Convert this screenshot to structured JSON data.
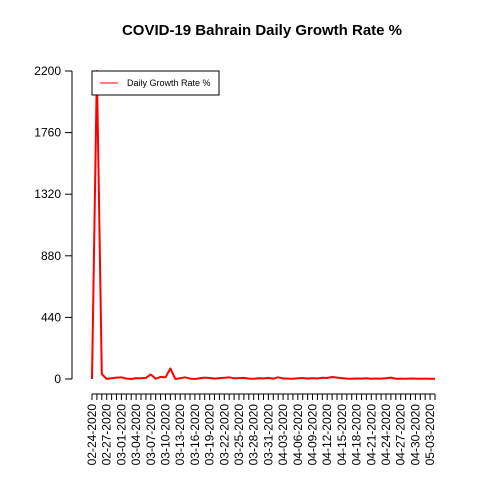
{
  "chart_data": {
    "type": "line",
    "title": "COVID-19 Bahrain Daily Growth Rate %",
    "xlabel": "",
    "ylabel": "",
    "ylim": [
      0,
      2200
    ],
    "yticks": [
      0,
      440,
      880,
      1320,
      1760,
      2200
    ],
    "grid": false,
    "legend_position": "top-left",
    "x": [
      "02-24-2020",
      "02-25-2020",
      "02-26-2020",
      "02-27-2020",
      "02-28-2020",
      "02-29-2020",
      "03-01-2020",
      "03-02-2020",
      "03-03-2020",
      "03-04-2020",
      "03-05-2020",
      "03-06-2020",
      "03-07-2020",
      "03-08-2020",
      "03-09-2020",
      "03-10-2020",
      "03-11-2020",
      "03-12-2020",
      "03-13-2020",
      "03-14-2020",
      "03-15-2020",
      "03-16-2020",
      "03-17-2020",
      "03-18-2020",
      "03-19-2020",
      "03-20-2020",
      "03-21-2020",
      "03-22-2020",
      "03-23-2020",
      "03-24-2020",
      "03-25-2020",
      "03-26-2020",
      "03-27-2020",
      "03-28-2020",
      "03-29-2020",
      "03-30-2020",
      "03-31-2020",
      "04-01-2020",
      "04-02-2020",
      "04-03-2020",
      "04-04-2020",
      "04-05-2020",
      "04-06-2020",
      "04-07-2020",
      "04-08-2020",
      "04-09-2020",
      "04-10-2020",
      "04-11-2020",
      "04-12-2020",
      "04-13-2020",
      "04-14-2020",
      "04-15-2020",
      "04-16-2020",
      "04-17-2020",
      "04-18-2020",
      "04-19-2020",
      "04-20-2020",
      "04-21-2020",
      "04-22-2020",
      "04-23-2020",
      "04-24-2020",
      "04-25-2020",
      "04-26-2020",
      "04-27-2020",
      "04-28-2020",
      "04-29-2020",
      "04-30-2020",
      "05-01-2020",
      "05-02-2020",
      "05-03-2020",
      "05-04-2020"
    ],
    "xtick_labels": [
      "02-24-2020",
      "02-27-2020",
      "03-01-2020",
      "03-04-2020",
      "03-07-2020",
      "03-10-2020",
      "03-13-2020",
      "03-16-2020",
      "03-19-2020",
      "03-22-2020",
      "03-25-2020",
      "03-28-2020",
      "03-31-2020",
      "04-03-2020",
      "04-06-2020",
      "04-09-2020",
      "04-12-2020",
      "04-15-2020",
      "04-18-2020",
      "04-21-2020",
      "04-24-2020",
      "04-27-2020",
      "04-30-2020",
      "05-03-2020"
    ],
    "series": [
      {
        "name": "Daily Growth Rate %",
        "color": "#ff0000",
        "values": [
          0,
          2200,
          35,
          0,
          5,
          10,
          12,
          3,
          0,
          6,
          5,
          8,
          32,
          2,
          15,
          12,
          75,
          0,
          5,
          12,
          3,
          0,
          5,
          10,
          7,
          3,
          6,
          9,
          12,
          5,
          6,
          8,
          3,
          2,
          5,
          4,
          8,
          2,
          12,
          4,
          3,
          2,
          5,
          7,
          3,
          6,
          4,
          9,
          7,
          14,
          10,
          6,
          3,
          2,
          4,
          3,
          5,
          2,
          4,
          3,
          5,
          10,
          2,
          3,
          2,
          4,
          3,
          2,
          3,
          2,
          1
        ]
      }
    ]
  }
}
